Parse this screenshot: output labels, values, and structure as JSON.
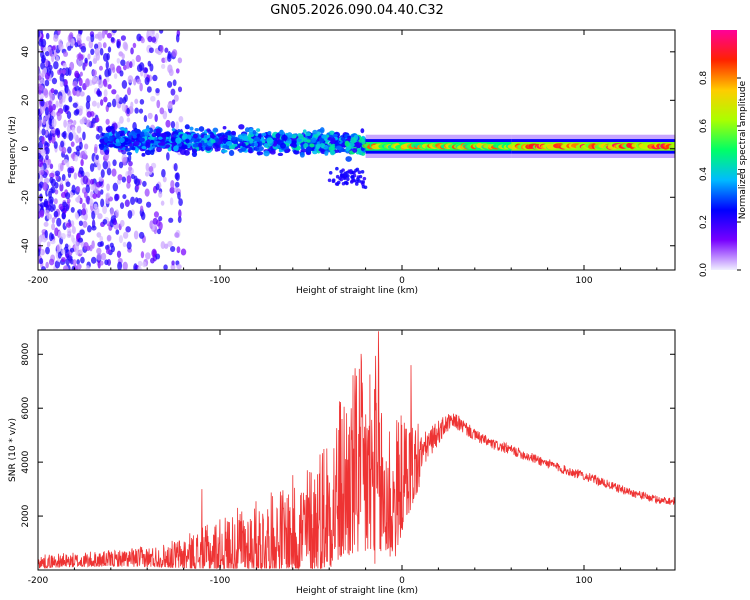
{
  "title": "GN05.2026.090.04.40.C32",
  "colors": {
    "snr_line": "#ee3333",
    "axis": "#000000",
    "background": "#ffffff"
  },
  "chart_data": [
    {
      "type": "heatmap",
      "name": "spectrogram",
      "xlabel": "Height of straight line (km)",
      "ylabel": "Frequency (Hz)",
      "xlim": [
        -200,
        150
      ],
      "ylim": [
        -50,
        49
      ],
      "xticks": [
        -200,
        -100,
        0,
        100
      ],
      "yticks": [
        -40,
        -20,
        0,
        20,
        40
      ],
      "colorbar": {
        "label": "Normalized spectral amplitude",
        "range": [
          0.0,
          1.0
        ],
        "ticks": [
          0.0,
          0.2,
          0.4,
          0.6,
          0.8
        ],
        "tick_labels": [
          "0.0",
          "0.2",
          "0.4",
          "0.6",
          "0.8"
        ],
        "colormap": [
          "#f0f0ff",
          "#7700ff",
          "#0000ff",
          "#00bbff",
          "#00ff66",
          "#aaff00",
          "#ffcc00",
          "#ff2200",
          "#ff0099"
        ]
      },
      "features": [
        {
          "region": "noise",
          "x_range": [
            -200,
            -120
          ],
          "freq_range": [
            -50,
            49
          ],
          "amplitude": [
            0.02,
            0.25
          ]
        },
        {
          "region": "spread_signal",
          "x_range": [
            -165,
            -20
          ],
          "freq_center": 3,
          "freq_halfwidth": 8,
          "amplitude": [
            0.2,
            0.5
          ]
        },
        {
          "region": "narrow_band",
          "x_range": [
            -20,
            60
          ],
          "freq_center": 1,
          "freq_halfwidth": 2,
          "amplitude": [
            0.45,
            0.85
          ]
        },
        {
          "region": "strong_band",
          "x_range": [
            60,
            150
          ],
          "freq_center": 1,
          "freq_halfwidth": 2,
          "amplitude": [
            0.55,
            0.95
          ]
        }
      ]
    },
    {
      "type": "line",
      "name": "snr",
      "xlabel": "Height of straight line (km)",
      "ylabel": "SNR (10 * v/v)",
      "xlim": [
        -200,
        150
      ],
      "ylim": [
        0,
        8900
      ],
      "xticks": [
        -200,
        -100,
        0,
        100
      ],
      "yticks": [
        2000,
        4000,
        6000,
        8000
      ],
      "envelope": {
        "x": [
          -200,
          -160,
          -130,
          -110,
          -90,
          -70,
          -50,
          -40,
          -30,
          -22,
          -16,
          -12,
          -8,
          -4,
          0,
          5,
          10,
          15,
          20,
          25,
          30,
          40,
          50,
          60,
          70,
          80,
          90,
          100,
          110,
          120,
          130,
          140,
          150
        ],
        "mean": [
          300,
          400,
          500,
          700,
          1000,
          1300,
          1800,
          2600,
          3500,
          3900,
          4000,
          3500,
          3000,
          2800,
          3400,
          3900,
          4300,
          4700,
          5100,
          5450,
          5500,
          5000,
          4650,
          4450,
          4200,
          3950,
          3700,
          3500,
          3250,
          3000,
          2800,
          2600,
          2550
        ],
        "spread": [
          250,
          300,
          450,
          800,
          1200,
          1500,
          2100,
          2800,
          3400,
          3800,
          4200,
          3600,
          3000,
          2700,
          2200,
          1800,
          1400,
          1100,
          900,
          700,
          600,
          450,
          400,
          380,
          370,
          360,
          350,
          340,
          330,
          320,
          310,
          300,
          300
        ]
      },
      "peaks": [
        {
          "x": -13,
          "y": 8850
        },
        {
          "x": 5,
          "y": 7600
        },
        {
          "x": -25,
          "y": 7200
        },
        {
          "x": -110,
          "y": 3000
        }
      ]
    }
  ]
}
